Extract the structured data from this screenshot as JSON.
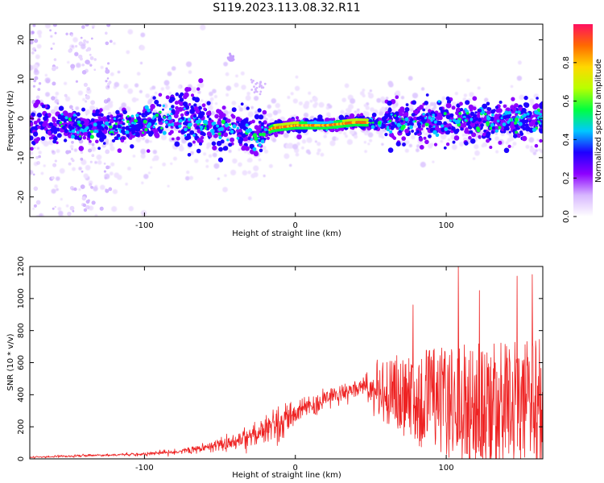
{
  "title": "S119.2023.113.08.32.R11",
  "chart_data": [
    {
      "type": "heatmap",
      "xlabel": "Height of straight line (km)",
      "ylabel": "Frequency (Hz)",
      "xlim": [
        -176,
        164
      ],
      "ylim": [
        -25,
        24
      ],
      "x_ticks": [
        -100,
        0,
        100
      ],
      "y_ticks": [
        -20,
        -10,
        0,
        10,
        20
      ],
      "colorbar": {
        "label": "Normalized spectral amplitude",
        "range": [
          0,
          1
        ],
        "ticks": [
          "0.0",
          "0.2",
          "0.4",
          "0.6",
          "0.8"
        ],
        "colors": [
          "#ffffff",
          "#d7b7ff",
          "#8d00ff",
          "#1e00ff",
          "#00c8ff",
          "#00ff40",
          "#b8ff00",
          "#ffd800",
          "#ff6a00",
          "#ff1060"
        ]
      },
      "ridge": {
        "description_points_x": [
          -176,
          -150,
          -120,
          -100,
          -80,
          -60,
          -40,
          -25,
          -15,
          0,
          20,
          40,
          60,
          80,
          100,
          120,
          140,
          164
        ],
        "description_points_y": [
          -2,
          -2,
          -2.5,
          -1,
          0.5,
          -2,
          -3.5,
          -4.5,
          -2.5,
          -1.8,
          -1.8,
          -1,
          -1.2,
          -0.8,
          -0.5,
          -0.8,
          -1,
          0.5
        ],
        "peak_amplitude_range_x": [
          -17,
          48
        ]
      }
    },
    {
      "type": "line",
      "xlabel": "Height of straight line (km)",
      "ylabel": "SNR (10 * v/v)",
      "xlim": [
        -176,
        164
      ],
      "ylim": [
        0,
        1200
      ],
      "x_ticks": [
        -100,
        0,
        100
      ],
      "y_ticks": [
        0,
        200,
        400,
        600,
        800,
        1000,
        1200
      ],
      "line_color": "#ee2222",
      "trend_x": [
        -176,
        -140,
        -100,
        -80,
        -60,
        -40,
        -20,
        -10,
        0,
        20,
        40,
        50,
        60,
        80,
        100,
        120,
        140,
        164
      ],
      "trend_y": [
        10,
        20,
        30,
        45,
        70,
        110,
        180,
        220,
        280,
        380,
        440,
        450,
        420,
        380,
        360,
        340,
        330,
        330
      ],
      "spread_y": [
        5,
        8,
        10,
        15,
        25,
        45,
        80,
        100,
        80,
        60,
        50,
        80,
        200,
        280,
        330,
        360,
        380,
        400
      ],
      "peaks": [
        {
          "x": 108,
          "y": 1200
        },
        {
          "x": 157,
          "y": 1150
        },
        {
          "x": 147,
          "y": 1140
        },
        {
          "x": 78,
          "y": 960
        },
        {
          "x": 122,
          "y": 1050
        }
      ]
    }
  ]
}
